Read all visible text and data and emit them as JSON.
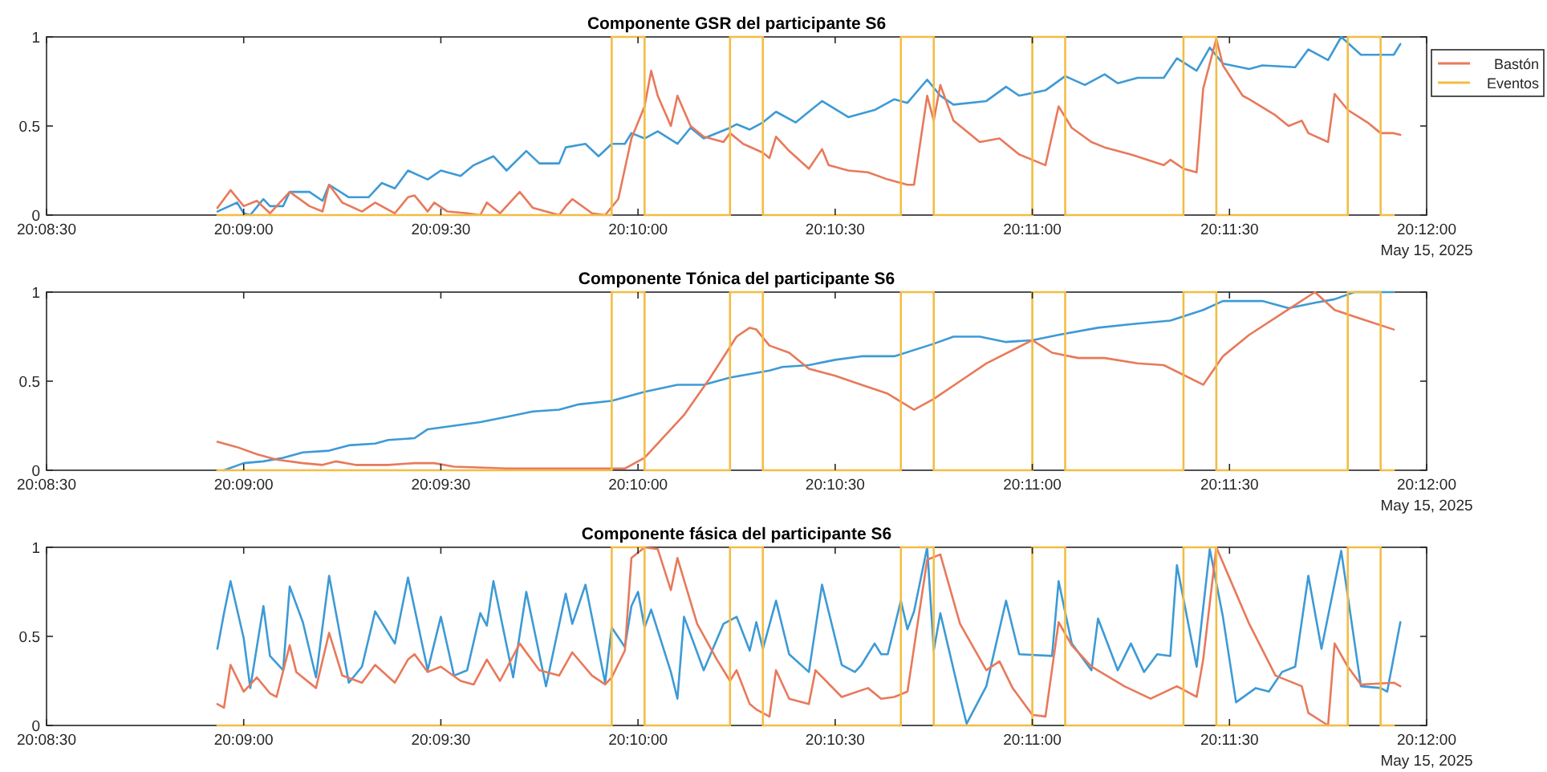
{
  "chart_data": [
    {
      "type": "line",
      "title": "Componente GSR del participante S6",
      "legend": "right",
      "annotations": [
        "May 15, 2025"
      ],
      "xlim": [
        "2025-05-15T20:08:30",
        "2025-05-15T20:12:00"
      ],
      "xticks": [
        {
          "value": "2025-05-15T20:08:30",
          "label": "20:08:30"
        },
        {
          "value": "2025-05-15T20:09:00",
          "label": "20:09:00"
        },
        {
          "value": "2025-05-15T20:09:30",
          "label": "20:09:30"
        },
        {
          "value": "2025-05-15T20:10:00",
          "label": "20:10:00"
        },
        {
          "value": "2025-05-15T20:10:30",
          "label": "20:10:30"
        },
        {
          "value": "2025-05-15T20:11:00",
          "label": "20:11:00"
        },
        {
          "value": "2025-05-15T20:11:30",
          "label": "20:11:30"
        },
        {
          "value": "2025-05-15T20:12:00",
          "label": "20:12:00"
        }
      ],
      "ylim": [
        0,
        1
      ],
      "yticks": [
        0,
        0.5,
        1
      ],
      "series": [
        {
          "color": "#3d9ad6",
          "x": [
            "2025-05-15T20:08:56",
            "2025-05-15T20:08:59",
            "2025-05-15T20:09:00",
            "2025-05-15T20:09:01",
            "2025-05-15T20:09:03",
            "2025-05-15T20:09:04",
            "2025-05-15T20:09:06",
            "2025-05-15T20:09:07",
            "2025-05-15T20:09:10",
            "2025-05-15T20:09:12",
            "2025-05-15T20:09:13",
            "2025-05-15T20:09:16",
            "2025-05-15T20:09:19",
            "2025-05-15T20:09:21",
            "2025-05-15T20:09:23",
            "2025-05-15T20:09:25",
            "2025-05-15T20:09:28",
            "2025-05-15T20:09:30",
            "2025-05-15T20:09:33",
            "2025-05-15T20:09:35",
            "2025-05-15T20:09:38",
            "2025-05-15T20:09:40",
            "2025-05-15T20:09:43",
            "2025-05-15T20:09:45",
            "2025-05-15T20:09:48",
            "2025-05-15T20:09:49",
            "2025-05-15T20:09:52",
            "2025-05-15T20:09:54",
            "2025-05-15T20:09:56",
            "2025-05-15T20:09:58",
            "2025-05-15T20:09:59",
            "2025-05-15T20:10:01",
            "2025-05-15T20:10:03",
            "2025-05-15T20:10:06",
            "2025-05-15T20:10:08",
            "2025-05-15T20:10:10",
            "2025-05-15T20:10:14",
            "2025-05-15T20:10:15",
            "2025-05-15T20:10:17",
            "2025-05-15T20:10:19",
            "2025-05-15T20:10:21",
            "2025-05-15T20:10:24",
            "2025-05-15T20:10:28",
            "2025-05-15T20:10:32",
            "2025-05-15T20:10:36",
            "2025-05-15T20:10:39",
            "2025-05-15T20:10:41",
            "2025-05-15T20:10:44",
            "2025-05-15T20:10:46",
            "2025-05-15T20:10:48",
            "2025-05-15T20:10:53",
            "2025-05-15T20:10:56",
            "2025-05-15T20:10:58",
            "2025-05-15T20:11:02",
            "2025-05-15T20:11:05",
            "2025-05-15T20:11:08",
            "2025-05-15T20:11:11",
            "2025-05-15T20:11:13",
            "2025-05-15T20:11:16",
            "2025-05-15T20:11:20",
            "2025-05-15T20:11:22",
            "2025-05-15T20:11:25",
            "2025-05-15T20:11:27",
            "2025-05-15T20:11:29",
            "2025-05-15T20:11:33",
            "2025-05-15T20:11:35",
            "2025-05-15T20:11:40",
            "2025-05-15T20:11:42",
            "2025-05-15T20:11:45",
            "2025-05-15T20:11:47",
            "2025-05-15T20:11:50",
            "2025-05-15T20:11:55",
            "2025-05-15T20:11:56"
          ],
          "values": [
            0.02,
            0.07,
            0.01,
            0,
            0.09,
            0.05,
            0.05,
            0.13,
            0.13,
            0.08,
            0.17,
            0.1,
            0.1,
            0.18,
            0.15,
            0.25,
            0.2,
            0.25,
            0.22,
            0.28,
            0.33,
            0.25,
            0.36,
            0.29,
            0.29,
            0.38,
            0.4,
            0.33,
            0.4,
            0.4,
            0.46,
            0.43,
            0.47,
            0.4,
            0.49,
            0.43,
            0.49,
            0.51,
            0.48,
            0.52,
            0.58,
            0.52,
            0.64,
            0.55,
            0.59,
            0.65,
            0.63,
            0.76,
            0.67,
            0.62,
            0.64,
            0.72,
            0.67,
            0.7,
            0.78,
            0.73,
            0.79,
            0.74,
            0.77,
            0.77,
            0.88,
            0.81,
            0.94,
            0.85,
            0.82,
            0.84,
            0.83,
            0.93,
            0.87,
            1,
            0.9,
            0.9,
            0.96
          ]
        },
        {
          "name": "Bastón",
          "color": "#e8795a",
          "x": [
            "2025-05-15T20:08:56",
            "2025-05-15T20:08:58",
            "2025-05-15T20:09:00",
            "2025-05-15T20:09:02",
            "2025-05-15T20:09:04",
            "2025-05-15T20:09:07",
            "2025-05-15T20:09:10",
            "2025-05-15T20:09:12",
            "2025-05-15T20:09:13",
            "2025-05-15T20:09:15",
            "2025-05-15T20:09:18",
            "2025-05-15T20:09:20",
            "2025-05-15T20:09:23",
            "2025-05-15T20:09:25",
            "2025-05-15T20:09:26",
            "2025-05-15T20:09:28",
            "2025-05-15T20:09:29",
            "2025-05-15T20:09:31",
            "2025-05-15T20:09:34",
            "2025-05-15T20:09:36",
            "2025-05-15T20:09:37",
            "2025-05-15T20:09:39",
            "2025-05-15T20:09:42",
            "2025-05-15T20:09:44",
            "2025-05-15T20:09:48",
            "2025-05-15T20:09:49",
            "2025-05-15T20:09:50",
            "2025-05-15T20:09:53",
            "2025-05-15T20:09:55",
            "2025-05-15T20:09:57",
            "2025-05-15T20:09:59",
            "2025-05-15T20:10:01",
            "2025-05-15T20:10:02",
            "2025-05-15T20:10:03",
            "2025-05-15T20:10:05",
            "2025-05-15T20:10:06",
            "2025-05-15T20:10:08",
            "2025-05-15T20:10:10",
            "2025-05-15T20:10:13",
            "2025-05-15T20:10:14",
            "2025-05-15T20:10:16",
            "2025-05-15T20:10:19",
            "2025-05-15T20:10:20",
            "2025-05-15T20:10:21",
            "2025-05-15T20:10:23",
            "2025-05-15T20:10:26",
            "2025-05-15T20:10:28",
            "2025-05-15T20:10:29",
            "2025-05-15T20:10:32",
            "2025-05-15T20:10:35",
            "2025-05-15T20:10:38",
            "2025-05-15T20:10:41",
            "2025-05-15T20:10:42",
            "2025-05-15T20:10:44",
            "2025-05-15T20:10:45",
            "2025-05-15T20:10:46",
            "2025-05-15T20:10:48",
            "2025-05-15T20:10:52",
            "2025-05-15T20:10:55",
            "2025-05-15T20:10:58",
            "2025-05-15T20:11:02",
            "2025-05-15T20:11:04",
            "2025-05-15T20:11:06",
            "2025-05-15T20:11:09",
            "2025-05-15T20:11:11",
            "2025-05-15T20:11:15",
            "2025-05-15T20:11:20",
            "2025-05-15T20:11:21",
            "2025-05-15T20:11:23",
            "2025-05-15T20:11:25",
            "2025-05-15T20:11:26",
            "2025-05-15T20:11:28",
            "2025-05-15T20:11:29",
            "2025-05-15T20:11:32",
            "2025-05-15T20:11:33",
            "2025-05-15T20:11:37",
            "2025-05-15T20:11:39",
            "2025-05-15T20:11:41",
            "2025-05-15T20:11:42",
            "2025-05-15T20:11:45",
            "2025-05-15T20:11:46",
            "2025-05-15T20:11:48",
            "2025-05-15T20:11:51",
            "2025-05-15T20:11:53",
            "2025-05-15T20:11:55",
            "2025-05-15T20:11:56"
          ],
          "values": [
            0.04,
            0.14,
            0.05,
            0.08,
            0.01,
            0.13,
            0.05,
            0.02,
            0.17,
            0.07,
            0.02,
            0.07,
            0.01,
            0.1,
            0.11,
            0.02,
            0.07,
            0.02,
            0.01,
            0,
            0.07,
            0.01,
            0.13,
            0.04,
            0,
            0.05,
            0.09,
            0.01,
            0,
            0.09,
            0.43,
            0.61,
            0.81,
            0.67,
            0.5,
            0.67,
            0.5,
            0.44,
            0.41,
            0.46,
            0.4,
            0.35,
            0.32,
            0.44,
            0.36,
            0.26,
            0.37,
            0.28,
            0.25,
            0.24,
            0.2,
            0.17,
            0.17,
            0.67,
            0.53,
            0.73,
            0.53,
            0.41,
            0.43,
            0.34,
            0.28,
            0.61,
            0.49,
            0.41,
            0.38,
            0.34,
            0.28,
            0.31,
            0.26,
            0.24,
            0.71,
            0.99,
            0.84,
            0.67,
            0.65,
            0.56,
            0.5,
            0.53,
            0.46,
            0.41,
            0.68,
            0.59,
            0.52,
            0.46,
            0.46,
            0.45
          ]
        },
        {
          "name": "Eventos",
          "color": "#f2bd45",
          "x": [
            "2025-05-15T20:08:56",
            "2025-05-15T20:09:56",
            "2025-05-15T20:09:56",
            "2025-05-15T20:10:01",
            "2025-05-15T20:10:01",
            "2025-05-15T20:10:14",
            "2025-05-15T20:10:14",
            "2025-05-15T20:10:19",
            "2025-05-15T20:10:19",
            "2025-05-15T20:10:40",
            "2025-05-15T20:10:40",
            "2025-05-15T20:10:45",
            "2025-05-15T20:10:45",
            "2025-05-15T20:11:00",
            "2025-05-15T20:11:00",
            "2025-05-15T20:11:05",
            "2025-05-15T20:11:05",
            "2025-05-15T20:11:23",
            "2025-05-15T20:11:23",
            "2025-05-15T20:11:28",
            "2025-05-15T20:11:28",
            "2025-05-15T20:11:48",
            "2025-05-15T20:11:48",
            "2025-05-15T20:11:53",
            "2025-05-15T20:11:53",
            "2025-05-15T20:11:55"
          ],
          "values": [
            0,
            0,
            1,
            1,
            0,
            0,
            1,
            1,
            0,
            0,
            1,
            1,
            0,
            0,
            1,
            1,
            0,
            0,
            1,
            1,
            0,
            0,
            1,
            1,
            0,
            0
          ]
        }
      ]
    },
    {
      "type": "line",
      "title": "Componente Tónica del participante S6",
      "annotations": [
        "May 15, 2025"
      ],
      "xlim": [
        "2025-05-15T20:08:30",
        "2025-05-15T20:12:00"
      ],
      "xticks": [
        {
          "value": "2025-05-15T20:08:30",
          "label": "20:08:30"
        },
        {
          "value": "2025-05-15T20:09:00",
          "label": "20:09:00"
        },
        {
          "value": "2025-05-15T20:09:30",
          "label": "20:09:30"
        },
        {
          "value": "2025-05-15T20:10:00",
          "label": "20:10:00"
        },
        {
          "value": "2025-05-15T20:10:30",
          "label": "20:10:30"
        },
        {
          "value": "2025-05-15T20:11:00",
          "label": "20:11:00"
        },
        {
          "value": "2025-05-15T20:11:30",
          "label": "20:11:30"
        },
        {
          "value": "2025-05-15T20:12:00",
          "label": "20:12:00"
        }
      ],
      "ylim": [
        0,
        1
      ],
      "yticks": [
        0,
        0.5,
        1
      ],
      "series": [
        {
          "color": "#3d9ad6",
          "x": [
            "2025-05-15T20:08:57",
            "2025-05-15T20:09:00",
            "2025-05-15T20:09:03",
            "2025-05-15T20:09:06",
            "2025-05-15T20:09:09",
            "2025-05-15T20:09:13",
            "2025-05-15T20:09:16",
            "2025-05-15T20:09:20",
            "2025-05-15T20:09:22",
            "2025-05-15T20:09:26",
            "2025-05-15T20:09:28",
            "2025-05-15T20:09:32",
            "2025-05-15T20:09:36",
            "2025-05-15T20:09:40",
            "2025-05-15T20:09:44",
            "2025-05-15T20:09:48",
            "2025-05-15T20:09:51",
            "2025-05-15T20:09:56",
            "2025-05-15T20:10:01",
            "2025-05-15T20:10:06",
            "2025-05-15T20:10:10",
            "2025-05-15T20:10:14",
            "2025-05-15T20:10:20",
            "2025-05-15T20:10:22",
            "2025-05-15T20:10:26",
            "2025-05-15T20:10:30",
            "2025-05-15T20:10:34",
            "2025-05-15T20:10:39",
            "2025-05-15T20:10:45",
            "2025-05-15T20:10:48",
            "2025-05-15T20:10:52",
            "2025-05-15T20:10:56",
            "2025-05-15T20:11:00",
            "2025-05-15T20:11:04",
            "2025-05-15T20:11:10",
            "2025-05-15T20:11:15",
            "2025-05-15T20:11:21",
            "2025-05-15T20:11:26",
            "2025-05-15T20:11:29",
            "2025-05-15T20:11:35",
            "2025-05-15T20:11:39",
            "2025-05-15T20:11:43",
            "2025-05-15T20:11:46",
            "2025-05-15T20:11:49",
            "2025-05-15T20:11:55"
          ],
          "values": [
            0,
            0.04,
            0.05,
            0.07,
            0.1,
            0.11,
            0.14,
            0.15,
            0.17,
            0.18,
            0.23,
            0.25,
            0.27,
            0.3,
            0.33,
            0.34,
            0.37,
            0.39,
            0.44,
            0.48,
            0.48,
            0.52,
            0.56,
            0.58,
            0.59,
            0.62,
            0.64,
            0.64,
            0.71,
            0.75,
            0.75,
            0.72,
            0.73,
            0.76,
            0.8,
            0.82,
            0.84,
            0.9,
            0.95,
            0.95,
            0.91,
            0.94,
            0.96,
            1,
            1
          ]
        },
        {
          "color": "#e8795a",
          "x": [
            "2025-05-15T20:08:56",
            "2025-05-15T20:08:59",
            "2025-05-15T20:09:02",
            "2025-05-15T20:09:05",
            "2025-05-15T20:09:09",
            "2025-05-15T20:09:12",
            "2025-05-15T20:09:14",
            "2025-05-15T20:09:17",
            "2025-05-15T20:09:22",
            "2025-05-15T20:09:26",
            "2025-05-15T20:09:29",
            "2025-05-15T20:09:32",
            "2025-05-15T20:09:40",
            "2025-05-15T20:09:48",
            "2025-05-15T20:09:56",
            "2025-05-15T20:09:58",
            "2025-05-15T20:10:01",
            "2025-05-15T20:10:07",
            "2025-05-15T20:10:11",
            "2025-05-15T20:10:15",
            "2025-05-15T20:10:17",
            "2025-05-15T20:10:18",
            "2025-05-15T20:10:20",
            "2025-05-15T20:10:23",
            "2025-05-15T20:10:26",
            "2025-05-15T20:10:30",
            "2025-05-15T20:10:34",
            "2025-05-15T20:10:38",
            "2025-05-15T20:10:42",
            "2025-05-15T20:10:45",
            "2025-05-15T20:10:49",
            "2025-05-15T20:10:53",
            "2025-05-15T20:11:00",
            "2025-05-15T20:11:03",
            "2025-05-15T20:11:07",
            "2025-05-15T20:11:11",
            "2025-05-15T20:11:16",
            "2025-05-15T20:11:20",
            "2025-05-15T20:11:26",
            "2025-05-15T20:11:29",
            "2025-05-15T20:11:33",
            "2025-05-15T20:11:38",
            "2025-05-15T20:11:43",
            "2025-05-15T20:11:46",
            "2025-05-15T20:11:50",
            "2025-05-15T20:11:55"
          ],
          "values": [
            0.16,
            0.13,
            0.09,
            0.06,
            0.04,
            0.03,
            0.05,
            0.03,
            0.03,
            0.04,
            0.04,
            0.02,
            0.01,
            0.01,
            0.01,
            0.01,
            0.07,
            0.31,
            0.52,
            0.75,
            0.8,
            0.79,
            0.7,
            0.66,
            0.57,
            0.53,
            0.48,
            0.43,
            0.34,
            0.4,
            0.5,
            0.6,
            0.73,
            0.66,
            0.63,
            0.63,
            0.6,
            0.59,
            0.48,
            0.64,
            0.76,
            0.88,
            1,
            0.9,
            0.85,
            0.79
          ]
        },
        {
          "color": "#f2bd45",
          "x": [
            "2025-05-15T20:08:56",
            "2025-05-15T20:09:56",
            "2025-05-15T20:09:56",
            "2025-05-15T20:10:01",
            "2025-05-15T20:10:01",
            "2025-05-15T20:10:14",
            "2025-05-15T20:10:14",
            "2025-05-15T20:10:19",
            "2025-05-15T20:10:19",
            "2025-05-15T20:10:40",
            "2025-05-15T20:10:40",
            "2025-05-15T20:10:45",
            "2025-05-15T20:10:45",
            "2025-05-15T20:11:00",
            "2025-05-15T20:11:00",
            "2025-05-15T20:11:05",
            "2025-05-15T20:11:05",
            "2025-05-15T20:11:23",
            "2025-05-15T20:11:23",
            "2025-05-15T20:11:28",
            "2025-05-15T20:11:28",
            "2025-05-15T20:11:48",
            "2025-05-15T20:11:48",
            "2025-05-15T20:11:53",
            "2025-05-15T20:11:53",
            "2025-05-15T20:11:55"
          ],
          "values": [
            0,
            0,
            1,
            1,
            0,
            0,
            1,
            1,
            0,
            0,
            1,
            1,
            0,
            0,
            1,
            1,
            0,
            0,
            1,
            1,
            0,
            0,
            1,
            1,
            0,
            0
          ]
        }
      ]
    },
    {
      "type": "line",
      "title": "Componente fásica del participante S6",
      "annotations": [
        "May 15, 2025"
      ],
      "xlim": [
        "2025-05-15T20:08:30",
        "2025-05-15T20:12:00"
      ],
      "xticks": [
        {
          "value": "2025-05-15T20:08:30",
          "label": "20:08:30"
        },
        {
          "value": "2025-05-15T20:09:00",
          "label": "20:09:00"
        },
        {
          "value": "2025-05-15T20:09:30",
          "label": "20:09:30"
        },
        {
          "value": "2025-05-15T20:10:00",
          "label": "20:10:00"
        },
        {
          "value": "2025-05-15T20:10:30",
          "label": "20:10:30"
        },
        {
          "value": "2025-05-15T20:11:00",
          "label": "20:11:00"
        },
        {
          "value": "2025-05-15T20:11:30",
          "label": "20:11:30"
        },
        {
          "value": "2025-05-15T20:12:00",
          "label": "20:12:00"
        }
      ],
      "ylim": [
        0,
        1
      ],
      "yticks": [
        0,
        0.5,
        1
      ],
      "series": [
        {
          "color": "#3d9ad6",
          "x": [
            "2025-05-15T20:08:56",
            "2025-05-15T20:08:57",
            "2025-05-15T20:08:58",
            "2025-05-15T20:09:00",
            "2025-05-15T20:09:01",
            "2025-05-15T20:09:03",
            "2025-05-15T20:09:04",
            "2025-05-15T20:09:06",
            "2025-05-15T20:09:07",
            "2025-05-15T20:09:09",
            "2025-05-15T20:09:11",
            "2025-05-15T20:09:13",
            "2025-05-15T20:09:16",
            "2025-05-15T20:09:18",
            "2025-05-15T20:09:20",
            "2025-05-15T20:09:23",
            "2025-05-15T20:09:25",
            "2025-05-15T20:09:28",
            "2025-05-15T20:09:30",
            "2025-05-15T20:09:32",
            "2025-05-15T20:09:34",
            "2025-05-15T20:09:36",
            "2025-05-15T20:09:37",
            "2025-05-15T20:09:38",
            "2025-05-15T20:09:41",
            "2025-05-15T20:09:43",
            "2025-05-15T20:09:46",
            "2025-05-15T20:09:49",
            "2025-05-15T20:09:50",
            "2025-05-15T20:09:52",
            "2025-05-15T20:09:55",
            "2025-05-15T20:09:56",
            "2025-05-15T20:09:58",
            "2025-05-15T20:09:59",
            "2025-05-15T20:10:00",
            "2025-05-15T20:10:01",
            "2025-05-15T20:10:02",
            "2025-05-15T20:10:05",
            "2025-05-15T20:10:06",
            "2025-05-15T20:10:07",
            "2025-05-15T20:10:10",
            "2025-05-15T20:10:13",
            "2025-05-15T20:10:15",
            "2025-05-15T20:10:17",
            "2025-05-15T20:10:18",
            "2025-05-15T20:10:19",
            "2025-05-15T20:10:21",
            "2025-05-15T20:10:23",
            "2025-05-15T20:10:26",
            "2025-05-15T20:10:28",
            "2025-05-15T20:10:31",
            "2025-05-15T20:10:33",
            "2025-05-15T20:10:34",
            "2025-05-15T20:10:36",
            "2025-05-15T20:10:37",
            "2025-05-15T20:10:38",
            "2025-05-15T20:10:40",
            "2025-05-15T20:10:41",
            "2025-05-15T20:10:42",
            "2025-05-15T20:10:44",
            "2025-05-15T20:10:45",
            "2025-05-15T20:10:46",
            "2025-05-15T20:10:49",
            "2025-05-15T20:10:50",
            "2025-05-15T20:10:53",
            "2025-05-15T20:10:56",
            "2025-05-15T20:10:58",
            "2025-05-15T20:11:03",
            "2025-05-15T20:11:04",
            "2025-05-15T20:11:06",
            "2025-05-15T20:11:09",
            "2025-05-15T20:11:10",
            "2025-05-15T20:11:13",
            "2025-05-15T20:11:15",
            "2025-05-15T20:11:17",
            "2025-05-15T20:11:19",
            "2025-05-15T20:11:21",
            "2025-05-15T20:11:22",
            "2025-05-15T20:11:25",
            "2025-05-15T20:11:27",
            "2025-05-15T20:11:29",
            "2025-05-15T20:11:31",
            "2025-05-15T20:11:34",
            "2025-05-15T20:11:36",
            "2025-05-15T20:11:38",
            "2025-05-15T20:11:40",
            "2025-05-15T20:11:42",
            "2025-05-15T20:11:44",
            "2025-05-15T20:11:47",
            "2025-05-15T20:11:50",
            "2025-05-15T20:11:53",
            "2025-05-15T20:11:54",
            "2025-05-15T20:11:56"
          ],
          "values": [
            0.43,
            0.63,
            0.81,
            0.49,
            0.21,
            0.67,
            0.39,
            0.31,
            0.78,
            0.58,
            0.27,
            0.84,
            0.24,
            0.33,
            0.64,
            0.46,
            0.83,
            0.31,
            0.61,
            0.28,
            0.31,
            0.63,
            0.56,
            0.81,
            0.27,
            0.75,
            0.22,
            0.74,
            0.57,
            0.79,
            0.24,
            0.55,
            0.44,
            0.67,
            0.75,
            0.55,
            0.65,
            0.3,
            0.15,
            0.61,
            0.31,
            0.57,
            0.61,
            0.42,
            0.58,
            0.43,
            0.7,
            0.4,
            0.3,
            0.79,
            0.34,
            0.3,
            0.34,
            0.46,
            0.4,
            0.4,
            0.7,
            0.54,
            0.64,
            1,
            0.42,
            0.63,
            0.16,
            0.01,
            0.22,
            0.7,
            0.4,
            0.39,
            0.81,
            0.46,
            0.31,
            0.6,
            0.31,
            0.46,
            0.3,
            0.4,
            0.39,
            0.9,
            0.33,
            0.99,
            0.61,
            0.13,
            0.21,
            0.19,
            0.3,
            0.33,
            0.84,
            0.43,
            0.98,
            0.22,
            0.21,
            0.19,
            0.58
          ]
        },
        {
          "color": "#e8795a",
          "x": [
            "2025-05-15T20:08:56",
            "2025-05-15T20:08:57",
            "2025-05-15T20:08:58",
            "2025-05-15T20:09:00",
            "2025-05-15T20:09:02",
            "2025-05-15T20:09:04",
            "2025-05-15T20:09:05",
            "2025-05-15T20:09:07",
            "2025-05-15T20:09:08",
            "2025-05-15T20:09:11",
            "2025-05-15T20:09:13",
            "2025-05-15T20:09:15",
            "2025-05-15T20:09:18",
            "2025-05-15T20:09:20",
            "2025-05-15T20:09:23",
            "2025-05-15T20:09:25",
            "2025-05-15T20:09:26",
            "2025-05-15T20:09:28",
            "2025-05-15T20:09:30",
            "2025-05-15T20:09:33",
            "2025-05-15T20:09:35",
            "2025-05-15T20:09:37",
            "2025-05-15T20:09:39",
            "2025-05-15T20:09:42",
            "2025-05-15T20:09:45",
            "2025-05-15T20:09:48",
            "2025-05-15T20:09:50",
            "2025-05-15T20:09:53",
            "2025-05-15T20:09:55",
            "2025-05-15T20:09:56",
            "2025-05-15T20:09:58",
            "2025-05-15T20:09:59",
            "2025-05-15T20:10:01",
            "2025-05-15T20:10:03",
            "2025-05-15T20:10:05",
            "2025-05-15T20:10:06",
            "2025-05-15T20:10:09",
            "2025-05-15T20:10:12",
            "2025-05-15T20:10:14",
            "2025-05-15T20:10:15",
            "2025-05-15T20:10:17",
            "2025-05-15T20:10:18",
            "2025-05-15T20:10:20",
            "2025-05-15T20:10:21",
            "2025-05-15T20:10:23",
            "2025-05-15T20:10:26",
            "2025-05-15T20:10:27",
            "2025-05-15T20:10:31",
            "2025-05-15T20:10:35",
            "2025-05-15T20:10:37",
            "2025-05-15T20:10:39",
            "2025-05-15T20:10:41",
            "2025-05-15T20:10:44",
            "2025-05-15T20:10:46",
            "2025-05-15T20:10:49",
            "2025-05-15T20:10:53",
            "2025-05-15T20:10:55",
            "2025-05-15T20:10:57",
            "2025-05-15T20:11:00",
            "2025-05-15T20:11:02",
            "2025-05-15T20:11:04",
            "2025-05-15T20:11:06",
            "2025-05-15T20:11:09",
            "2025-05-15T20:11:14",
            "2025-05-15T20:11:18",
            "2025-05-15T20:11:22",
            "2025-05-15T20:11:25",
            "2025-05-15T20:11:26",
            "2025-05-15T20:11:28",
            "2025-05-15T20:11:33",
            "2025-05-15T20:11:37",
            "2025-05-15T20:11:41",
            "2025-05-15T20:11:42",
            "2025-05-15T20:11:45",
            "2025-05-15T20:11:46",
            "2025-05-15T20:11:48",
            "2025-05-15T20:11:50",
            "2025-05-15T20:11:55",
            "2025-05-15T20:11:56"
          ],
          "values": [
            0.12,
            0.1,
            0.34,
            0.19,
            0.27,
            0.18,
            0.16,
            0.45,
            0.3,
            0.21,
            0.52,
            0.28,
            0.24,
            0.34,
            0.24,
            0.37,
            0.4,
            0.3,
            0.33,
            0.25,
            0.23,
            0.37,
            0.25,
            0.46,
            0.31,
            0.28,
            0.41,
            0.28,
            0.23,
            0.27,
            0.42,
            0.94,
            1,
            0.99,
            0.76,
            0.94,
            0.57,
            0.37,
            0.25,
            0.31,
            0.12,
            0.09,
            0.05,
            0.31,
            0.15,
            0.12,
            0.31,
            0.16,
            0.21,
            0.15,
            0.16,
            0.19,
            0.93,
            0.96,
            0.57,
            0.31,
            0.36,
            0.21,
            0.06,
            0.05,
            0.58,
            0.45,
            0.33,
            0.22,
            0.15,
            0.22,
            0.16,
            0.37,
            1,
            0.57,
            0.28,
            0.22,
            0.07,
            0,
            0.46,
            0.33,
            0.23,
            0.24,
            0.22
          ]
        },
        {
          "color": "#f2bd45",
          "x": [
            "2025-05-15T20:08:56",
            "2025-05-15T20:09:56",
            "2025-05-15T20:09:56",
            "2025-05-15T20:10:01",
            "2025-05-15T20:10:01",
            "2025-05-15T20:10:14",
            "2025-05-15T20:10:14",
            "2025-05-15T20:10:19",
            "2025-05-15T20:10:19",
            "2025-05-15T20:10:40",
            "2025-05-15T20:10:40",
            "2025-05-15T20:10:45",
            "2025-05-15T20:10:45",
            "2025-05-15T20:11:00",
            "2025-05-15T20:11:00",
            "2025-05-15T20:11:05",
            "2025-05-15T20:11:05",
            "2025-05-15T20:11:23",
            "2025-05-15T20:11:23",
            "2025-05-15T20:11:28",
            "2025-05-15T20:11:28",
            "2025-05-15T20:11:48",
            "2025-05-15T20:11:48",
            "2025-05-15T20:11:53",
            "2025-05-15T20:11:53",
            "2025-05-15T20:11:55"
          ],
          "values": [
            0,
            0,
            1,
            1,
            0,
            0,
            1,
            1,
            0,
            0,
            1,
            1,
            0,
            0,
            1,
            1,
            0,
            0,
            1,
            1,
            0,
            0,
            1,
            1,
            0,
            0
          ]
        }
      ]
    }
  ]
}
